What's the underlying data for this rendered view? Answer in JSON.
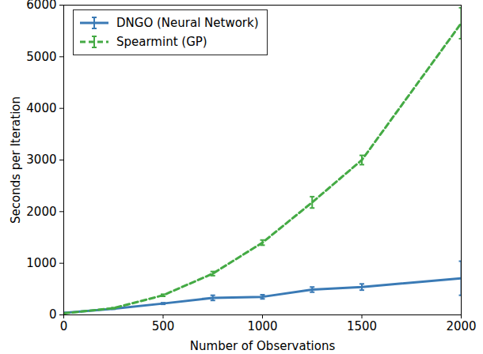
{
  "chart_data": {
    "type": "line",
    "x_label": "Number of Observations",
    "y_label": "Seconds per Iteration",
    "xlim": [
      0,
      2000
    ],
    "xticks": [
      0,
      500,
      1000,
      1500,
      2000
    ],
    "ylim": [
      0,
      6000
    ],
    "yticks": [
      0,
      1000,
      2000,
      3000,
      4000,
      5000,
      6000
    ],
    "grid": false,
    "legend": "upper left",
    "x": [
      0,
      250,
      500,
      750,
      1000,
      1250,
      1500,
      2000
    ],
    "series": [
      {
        "name": "DNGO (Neural Network)",
        "color": "#3a7ab5",
        "line_style": "solid",
        "values": [
          40,
          120,
          220,
          330,
          350,
          490,
          540,
          710
        ],
        "errors": [
          5,
          10,
          15,
          50,
          40,
          50,
          60,
          330
        ]
      },
      {
        "name": "Spearmint (GP)",
        "color": "#44aa44",
        "line_style": "dashed",
        "values": [
          30,
          130,
          380,
          800,
          1400,
          2180,
          3000,
          5650
        ],
        "errors": [
          5,
          10,
          20,
          40,
          50,
          110,
          90,
          300
        ]
      }
    ]
  }
}
